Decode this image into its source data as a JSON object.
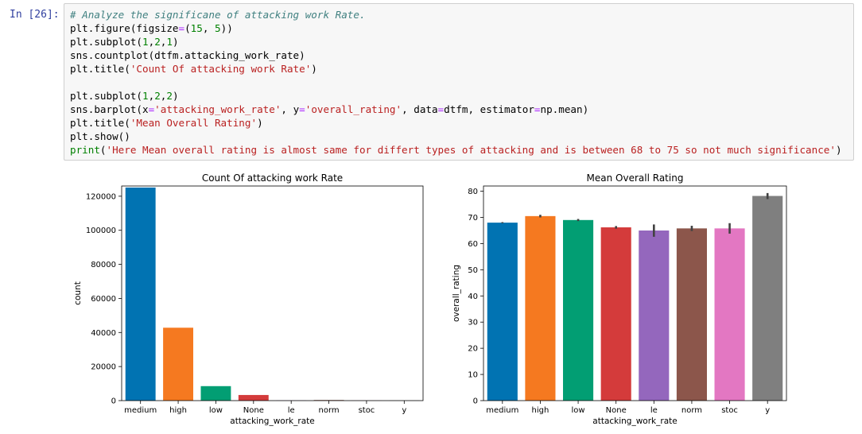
{
  "cell": {
    "prompt": "In [26]:",
    "code_lines": [
      [
        {
          "t": "# Analyze the significane of attacking work Rate.",
          "c": "com"
        }
      ],
      [
        {
          "t": "plt.figure(figsize"
        },
        {
          "t": "=",
          "c": "op"
        },
        {
          "t": "("
        },
        {
          "t": "15",
          "c": "num"
        },
        {
          "t": ", "
        },
        {
          "t": "5",
          "c": "num"
        },
        {
          "t": "))"
        }
      ],
      [
        {
          "t": "plt.subplot("
        },
        {
          "t": "1",
          "c": "num"
        },
        {
          "t": ","
        },
        {
          "t": "2",
          "c": "num"
        },
        {
          "t": ","
        },
        {
          "t": "1",
          "c": "num"
        },
        {
          "t": ")"
        }
      ],
      [
        {
          "t": "sns.countplot(dtfm.attacking_work_rate)"
        }
      ],
      [
        {
          "t": "plt.title("
        },
        {
          "t": "'Count Of attacking work Rate'",
          "c": "str"
        },
        {
          "t": ")"
        }
      ],
      [
        {
          "t": ""
        }
      ],
      [
        {
          "t": "plt.subplot("
        },
        {
          "t": "1",
          "c": "num"
        },
        {
          "t": ","
        },
        {
          "t": "2",
          "c": "num"
        },
        {
          "t": ","
        },
        {
          "t": "2",
          "c": "num"
        },
        {
          "t": ")"
        }
      ],
      [
        {
          "t": "sns.barplot(x"
        },
        {
          "t": "=",
          "c": "op"
        },
        {
          "t": "'attacking_work_rate'",
          "c": "str"
        },
        {
          "t": ", y"
        },
        {
          "t": "=",
          "c": "op"
        },
        {
          "t": "'overall_rating'",
          "c": "str"
        },
        {
          "t": ", data"
        },
        {
          "t": "=",
          "c": "op"
        },
        {
          "t": "dtfm, estimator"
        },
        {
          "t": "=",
          "c": "op"
        },
        {
          "t": "np.mean)"
        }
      ],
      [
        {
          "t": "plt.title("
        },
        {
          "t": "'Mean Overall Rating'",
          "c": "str"
        },
        {
          "t": ")"
        }
      ],
      [
        {
          "t": "plt.show()"
        }
      ],
      [
        {
          "t": "print",
          "c": "num"
        },
        {
          "t": "("
        },
        {
          "t": "'Here Mean overall rating is almost same for differt types of attacking and is between 68 to 75 so not much significance'",
          "c": "str"
        },
        {
          "t": ")"
        }
      ]
    ]
  },
  "chart_data": [
    {
      "type": "bar",
      "title": "Count Of attacking work Rate",
      "xlabel": "attacking_work_rate",
      "ylabel": "count",
      "categories": [
        "medium",
        "high",
        "low",
        "None",
        "le",
        "norm",
        "stoc",
        "y"
      ],
      "values": [
        125100,
        42800,
        8500,
        3300,
        100,
        350,
        100,
        100
      ],
      "ylim": [
        0,
        126000
      ],
      "yticks": [
        0,
        20000,
        40000,
        60000,
        80000,
        100000,
        120000
      ],
      "colors": [
        "#0173b2",
        "#f57920",
        "#029e73",
        "#d43b3b",
        "#9467bd",
        "#8c564b",
        "#e377c2",
        "#7f7f7f"
      ],
      "grid": false
    },
    {
      "type": "bar",
      "title": "Mean Overall Rating",
      "xlabel": "attacking_work_rate",
      "ylabel": "overall_rating",
      "categories": [
        "medium",
        "high",
        "low",
        "None",
        "le",
        "norm",
        "stoc",
        "y"
      ],
      "values": [
        68.0,
        70.5,
        69.0,
        66.2,
        65.0,
        65.8,
        65.8,
        78.2
      ],
      "errors": [
        [
          67.8,
          68.2
        ],
        [
          70.0,
          71.0
        ],
        [
          68.6,
          69.4
        ],
        [
          65.7,
          66.7
        ],
        [
          62.6,
          67.3
        ],
        [
          64.8,
          66.8
        ],
        [
          63.8,
          67.8
        ],
        [
          77.0,
          79.3
        ]
      ],
      "ylim": [
        0,
        82
      ],
      "yticks": [
        0,
        10,
        20,
        30,
        40,
        50,
        60,
        70,
        80
      ],
      "colors": [
        "#0173b2",
        "#f57920",
        "#029e73",
        "#d43b3b",
        "#9467bd",
        "#8c564b",
        "#e377c2",
        "#7f7f7f"
      ],
      "grid": false
    }
  ]
}
